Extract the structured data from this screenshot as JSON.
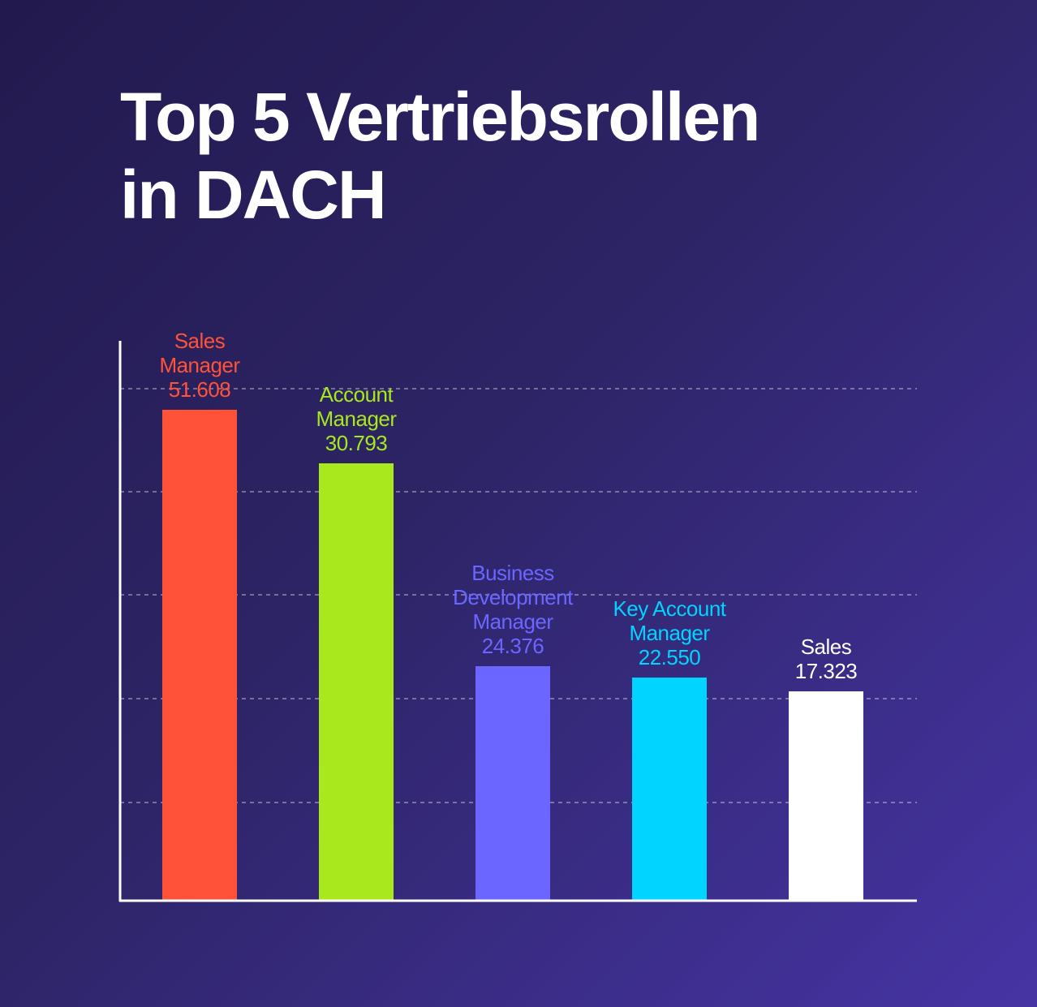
{
  "chart_data": {
    "type": "bar",
    "title_lines": [
      "Top 5 Vertriebsrollen",
      "in DACH"
    ],
    "xlabel": "",
    "ylabel": "",
    "grid": true,
    "categories": [
      [
        "Sales",
        "Manager"
      ],
      [
        "Account",
        "Manager"
      ],
      [
        "Business",
        "Development",
        "Manager"
      ],
      [
        "Key Account",
        "Manager"
      ],
      [
        "Sales"
      ]
    ],
    "value_labels": [
      "51.608",
      "30.793",
      "24.376",
      "22.550",
      "17.323"
    ],
    "values": [
      51608,
      30793,
      24376,
      22550,
      17323
    ],
    "colors": [
      "#ff5238",
      "#a8e81c",
      "#6b66ff",
      "#00d4ff",
      "#ffffff"
    ]
  }
}
